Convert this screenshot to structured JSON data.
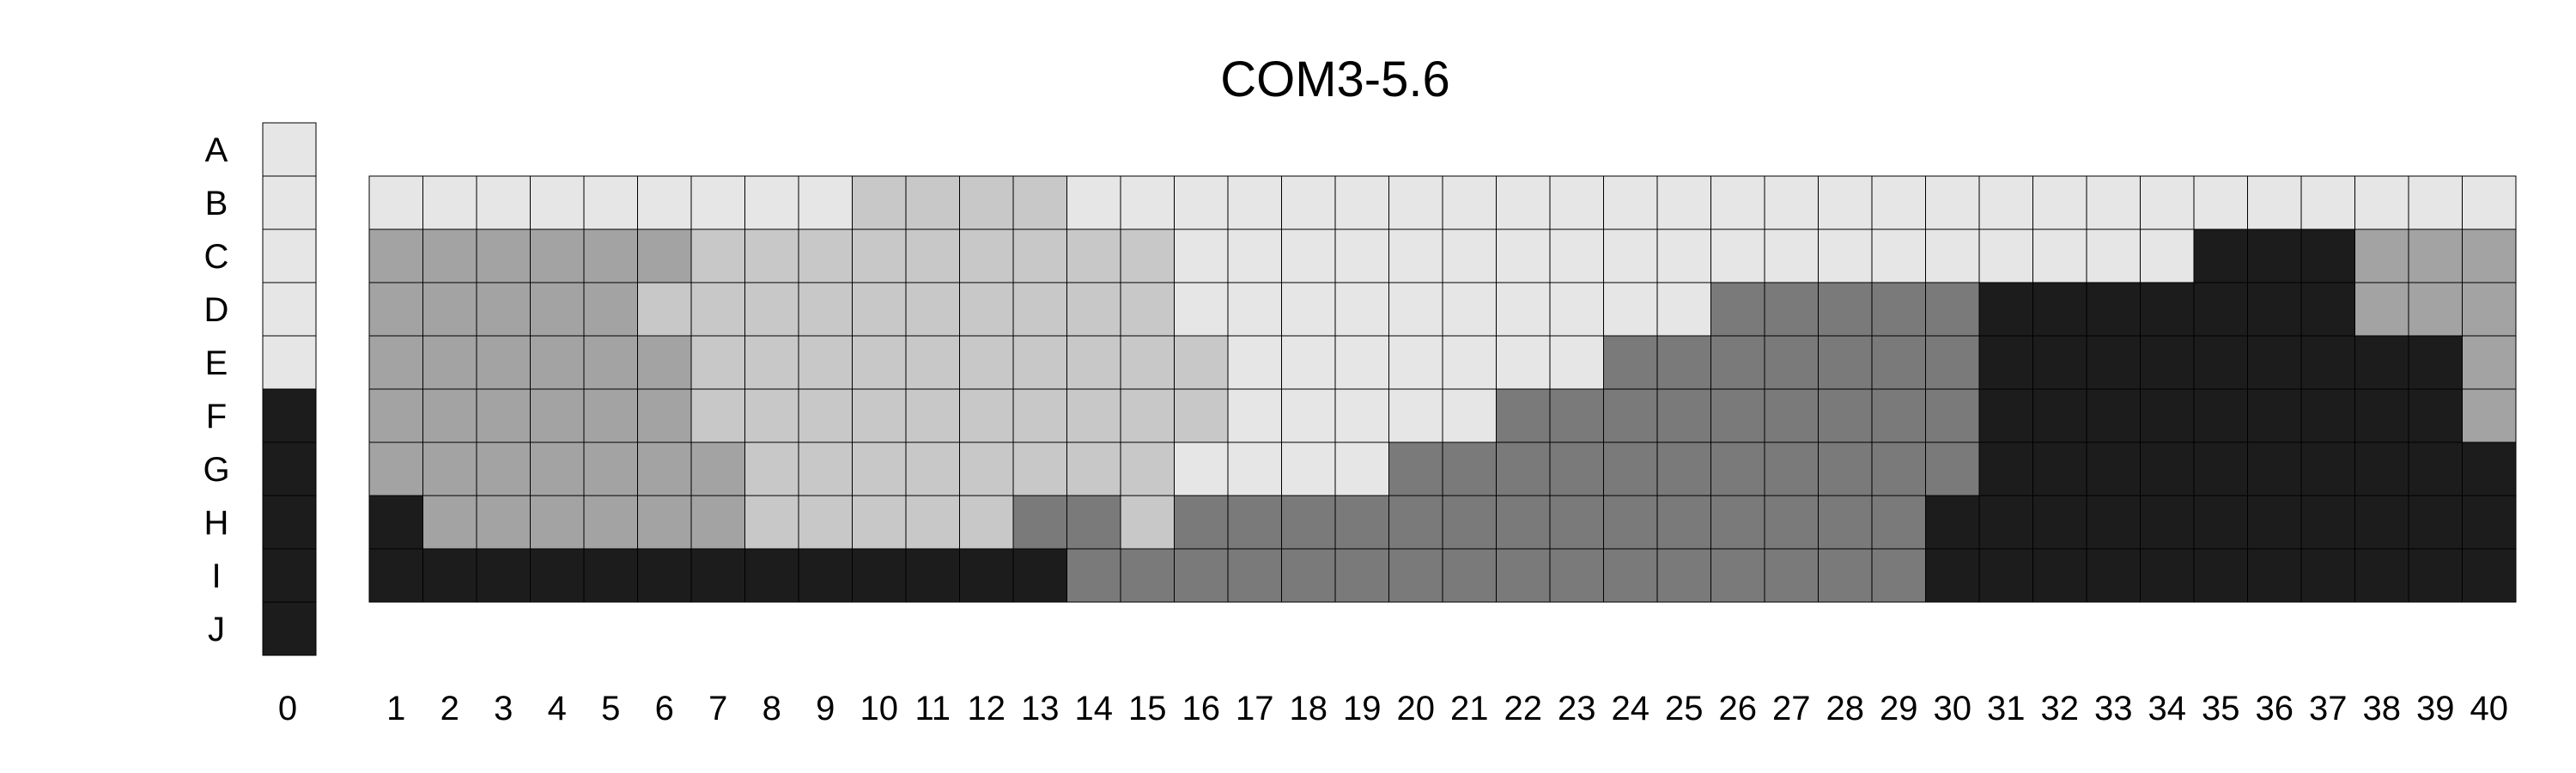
{
  "chart_data": {
    "type": "heatmap",
    "title": "COM3-5.6",
    "colors": {
      "1": "#e6e6e6",
      "2": "#c8c8c8",
      "3": "#a3a3a3",
      "4": "#7a7a7a",
      "5": "#1c1c1c"
    },
    "rows": [
      "A",
      "B",
      "C",
      "D",
      "E",
      "F",
      "G",
      "H",
      "I",
      "J"
    ],
    "columns": [
      "1",
      "2",
      "3",
      "4",
      "5",
      "6",
      "7",
      "8",
      "9",
      "10",
      "11",
      "12",
      "13",
      "14",
      "15",
      "16",
      "17",
      "18",
      "19",
      "20",
      "21",
      "22",
      "23",
      "24",
      "25",
      "26",
      "27",
      "28",
      "29",
      "30",
      "31",
      "32",
      "33",
      "34",
      "35",
      "36",
      "37",
      "38",
      "39",
      "40"
    ],
    "legend_label": "0",
    "legend_values": [
      1,
      1,
      1,
      1,
      1,
      5,
      5,
      5,
      5,
      5
    ],
    "matrix": [
      [
        1,
        1,
        1,
        1,
        1,
        1,
        1,
        1,
        1,
        2,
        2,
        2,
        2,
        1,
        1,
        1,
        1,
        1,
        1,
        1,
        1,
        1,
        1,
        1,
        1,
        1,
        1,
        1,
        1,
        1,
        1,
        1,
        1,
        1,
        1,
        1,
        1,
        1,
        1,
        1
      ],
      [
        3,
        3,
        3,
        3,
        3,
        3,
        2,
        2,
        2,
        2,
        2,
        2,
        2,
        2,
        2,
        1,
        1,
        1,
        1,
        1,
        1,
        1,
        1,
        1,
        1,
        1,
        1,
        1,
        1,
        1,
        1,
        1,
        1,
        1,
        5,
        5,
        5,
        3,
        3,
        3
      ],
      [
        3,
        3,
        3,
        3,
        3,
        2,
        2,
        2,
        2,
        2,
        2,
        2,
        2,
        2,
        2,
        1,
        1,
        1,
        1,
        1,
        1,
        1,
        1,
        1,
        1,
        4,
        4,
        4,
        4,
        4,
        5,
        5,
        5,
        5,
        5,
        5,
        5,
        3,
        3,
        3
      ],
      [
        3,
        3,
        3,
        3,
        3,
        3,
        2,
        2,
        2,
        2,
        2,
        2,
        2,
        2,
        2,
        2,
        1,
        1,
        1,
        1,
        1,
        1,
        1,
        4,
        4,
        4,
        4,
        4,
        4,
        4,
        5,
        5,
        5,
        5,
        5,
        5,
        5,
        5,
        5,
        3
      ],
      [
        3,
        3,
        3,
        3,
        3,
        3,
        2,
        2,
        2,
        2,
        2,
        2,
        2,
        2,
        2,
        2,
        1,
        1,
        1,
        1,
        1,
        4,
        4,
        4,
        4,
        4,
        4,
        4,
        4,
        4,
        5,
        5,
        5,
        5,
        5,
        5,
        5,
        5,
        5,
        3
      ],
      [
        3,
        3,
        3,
        3,
        3,
        3,
        3,
        2,
        2,
        2,
        2,
        2,
        2,
        2,
        2,
        1,
        1,
        1,
        1,
        4,
        4,
        4,
        4,
        4,
        4,
        4,
        4,
        4,
        4,
        4,
        5,
        5,
        5,
        5,
        5,
        5,
        5,
        5,
        5,
        5
      ],
      [
        5,
        3,
        3,
        3,
        3,
        3,
        3,
        2,
        2,
        2,
        2,
        2,
        4,
        4,
        2,
        4,
        4,
        4,
        4,
        4,
        4,
        4,
        4,
        4,
        4,
        4,
        4,
        4,
        4,
        5,
        5,
        5,
        5,
        5,
        5,
        5,
        5,
        5,
        5,
        5
      ],
      [
        5,
        5,
        5,
        5,
        5,
        5,
        5,
        5,
        5,
        5,
        5,
        5,
        5,
        4,
        4,
        4,
        4,
        4,
        4,
        4,
        4,
        4,
        4,
        4,
        4,
        4,
        4,
        4,
        4,
        5,
        5,
        5,
        5,
        5,
        5,
        5,
        5,
        5,
        5,
        5
      ]
    ],
    "matrix_rows": [
      "B",
      "C",
      "D",
      "E",
      "F",
      "G",
      "H",
      "I"
    ]
  }
}
